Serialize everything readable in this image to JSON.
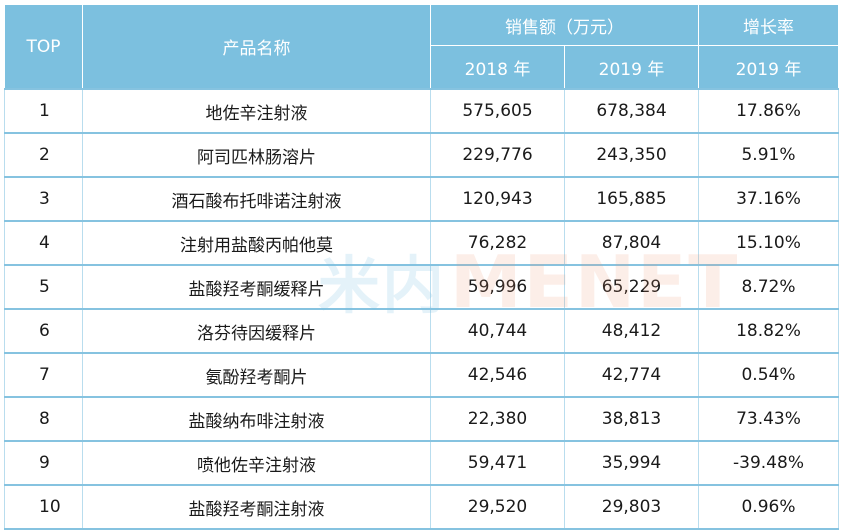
{
  "header": {
    "rank": "TOP",
    "product": "产品名称",
    "sales_group": "销售额（万元）",
    "growth_group": "增长率",
    "year_2018": "2018 年",
    "year_2019": "2019 年",
    "growth_year": "2019 年"
  },
  "rows": [
    {
      "rank": "1",
      "product": "地佐辛注射液",
      "sales_2018": "575,605",
      "sales_2019": "678,384",
      "growth": "17.86%"
    },
    {
      "rank": "2",
      "product": "阿司匹林肠溶片",
      "sales_2018": "229,776",
      "sales_2019": "243,350",
      "growth": "5.91%"
    },
    {
      "rank": "3",
      "product": "酒石酸布托啡诺注射液",
      "sales_2018": "120,943",
      "sales_2019": "165,885",
      "growth": "37.16%"
    },
    {
      "rank": "4",
      "product": "注射用盐酸丙帕他莫",
      "sales_2018": "76,282",
      "sales_2019": "87,804",
      "growth": "15.10%"
    },
    {
      "rank": "5",
      "product": "盐酸羟考酮缓释片",
      "sales_2018": "59,996",
      "sales_2019": "65,229",
      "growth": "8.72%"
    },
    {
      "rank": "6",
      "product": "洛芬待因缓释片",
      "sales_2018": "40,744",
      "sales_2019": "48,412",
      "growth": "18.82%"
    },
    {
      "rank": "7",
      "product": "氨酚羟考酮片",
      "sales_2018": "42,546",
      "sales_2019": "42,774",
      "growth": "0.54%"
    },
    {
      "rank": "8",
      "product": "盐酸纳布啡注射液",
      "sales_2018": "22,380",
      "sales_2019": "38,813",
      "growth": "73.43%"
    },
    {
      "rank": "9",
      "product": "喷他佐辛注射液",
      "sales_2018": "59,471",
      "sales_2019": "35,994",
      "growth": "-39.48%"
    },
    {
      "rank": "10",
      "product": "盐酸羟考酮注射液",
      "sales_2018": "29,520",
      "sales_2019": "29,803",
      "growth": "0.96%"
    }
  ],
  "watermark": {
    "prefix": "米内",
    "text": "MENET"
  },
  "colors": {
    "header_bg": "#7cc0df",
    "row_border": "#86c3e0"
  }
}
